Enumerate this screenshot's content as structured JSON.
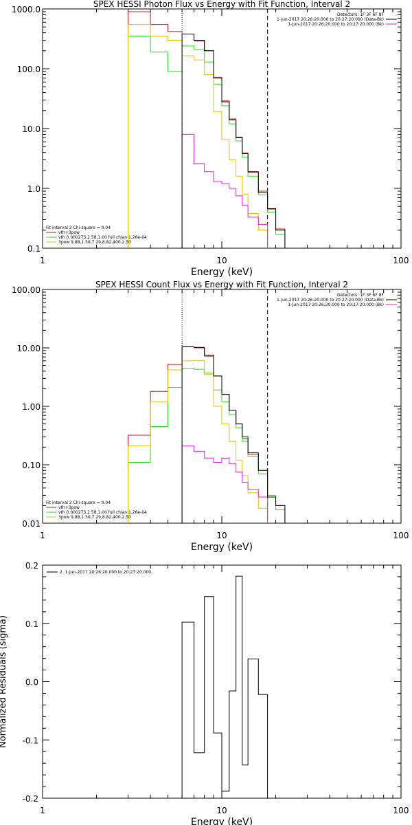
{
  "colors": {
    "background": "#ffffff",
    "axis": "#000000",
    "data": "#000000",
    "total": "#cc1a1a",
    "thermal": "#22dd22",
    "nonthermal": "#e5c000",
    "background_model": "#e01ee0"
  },
  "chart_data": [
    {
      "type": "line",
      "title": "SPEX HESSI Photon Flux vs Energy with Fit Function, Interval 2",
      "xlabel": "Energy (keV)",
      "ylabel": "",
      "xscale": "log",
      "yscale": "log",
      "xlim": [
        1,
        100
      ],
      "ylim": [
        0.1,
        1000
      ],
      "x_ticks": [
        "1",
        "10",
        "100"
      ],
      "y_ticks": [
        "0.1",
        "1.0",
        "10.0",
        "100.0",
        "1000.0"
      ],
      "grid": false,
      "vlines": [
        {
          "x": 6.0,
          "style": "dotted"
        },
        {
          "x": 18.0,
          "style": "dashed"
        }
      ],
      "legend_topright": [
        {
          "text": "Detectors: 1F 3F 6F 8F",
          "color": "#000000"
        },
        {
          "text": "1-Jun-2017 20:26:20.000 to 20:27:20.000 (Data-Bk)",
          "color": "#000000"
        },
        {
          "text": "1-Jun-2017 20:26:20.000 to 20:27:20.000 (Bk)",
          "color": "#e01ee0"
        }
      ],
      "legend_bottomleft": [
        {
          "text": "Fit Interval 2   Chi-square = 0.04",
          "color": "#000000"
        },
        {
          "text": "vth+3pow",
          "color": "#cc1a1a"
        },
        {
          "text": "vth 0.000273,2.58,1.00  full chian 1.26e-04",
          "color": "#22dd22"
        },
        {
          "text": "3pow 9.88,1.50,7.29,8.82,400,2.50",
          "color": "#e5c000"
        }
      ],
      "bin_edges": [
        3,
        4,
        5,
        6,
        7,
        8,
        9,
        10,
        11,
        12,
        13,
        14,
        16,
        18,
        20,
        22.5
      ],
      "series": [
        {
          "name": "Data-Bk",
          "color": "#000000",
          "range": [
            6,
            20
          ],
          "values": [
            null,
            null,
            null,
            380,
            300,
            200,
            70,
            28,
            14,
            7,
            3.8,
            1.9,
            0.85,
            0.46,
            0.2
          ]
        },
        {
          "name": "vth+3pow",
          "color": "#cc1a1a",
          "range": [
            3,
            22.5
          ],
          "values": [
            900,
            550,
            420,
            380,
            290,
            200,
            72,
            29,
            14.5,
            7.2,
            3.9,
            1.85,
            0.9,
            0.45,
            0.21
          ]
        },
        {
          "name": "vth",
          "color": "#22dd22",
          "range": [
            3,
            22.5
          ],
          "values": [
            350,
            190,
            90,
            240,
            210,
            130,
            55,
            24,
            12,
            6.2,
            3.3,
            1.6,
            0.78,
            0.4,
            0.17
          ]
        },
        {
          "name": "3pow",
          "color": "#e5c000",
          "range": [
            3,
            17
          ],
          "values": [
            550,
            350,
            300,
            165,
            140,
            80,
            19,
            6.5,
            3,
            1.6,
            0.8,
            0.38,
            0.2,
            null,
            null
          ]
        },
        {
          "name": "Bk",
          "color": "#e01ee0",
          "range": [
            6,
            18
          ],
          "values": [
            null,
            null,
            null,
            8,
            2.6,
            1.9,
            1.3,
            1.2,
            1.0,
            0.75,
            0.52,
            0.33,
            0.25,
            null,
            null
          ]
        }
      ]
    },
    {
      "type": "line",
      "title": "SPEX HESSI Count Flux vs Energy with Fit Function, Interval 2",
      "xlabel": "Energy (keV)",
      "ylabel": "",
      "xscale": "log",
      "yscale": "log",
      "xlim": [
        1,
        100
      ],
      "ylim": [
        0.01,
        100
      ],
      "x_ticks": [
        "1",
        "10",
        "100"
      ],
      "y_ticks": [
        "0.01",
        "0.10",
        "1.00",
        "10.00",
        "100.00"
      ],
      "grid": false,
      "vlines": [
        {
          "x": 6.0,
          "style": "dotted"
        },
        {
          "x": 18.0,
          "style": "dashed"
        }
      ],
      "legend_topright": [
        {
          "text": "Detectors: 1F 3F 6F 8F",
          "color": "#000000"
        },
        {
          "text": "1-Jun-2017 20:26:20.000 to 20:27:20.000 (Data-Bk)",
          "color": "#000000"
        },
        {
          "text": "1-Jun-2017 20:26:20.000 to 20:27:20.000 (Bk)",
          "color": "#e01ee0"
        }
      ],
      "legend_bottomleft": [
        {
          "text": "Fit Interval 2   Chi-square = 0.04",
          "color": "#000000"
        },
        {
          "text": "vth+3pow",
          "color": "#cc1a1a"
        },
        {
          "text": "vth 0.000273,2.58,1.00  full chian 1.26e-04",
          "color": "#22dd22"
        },
        {
          "text": "3pow 9.88,1.50,7.29,8.82,400,2.50",
          "color": "#e5c000"
        }
      ],
      "bin_edges": [
        3,
        4,
        5,
        6,
        7,
        8,
        9,
        10,
        11,
        12,
        13,
        14,
        16,
        18,
        20,
        22.5
      ],
      "series": [
        {
          "name": "Data-Bk",
          "color": "#000000",
          "range": [
            6,
            20
          ],
          "values": [
            null,
            null,
            null,
            10.5,
            10.2,
            7.5,
            3.3,
            1.6,
            0.85,
            0.5,
            0.3,
            0.16,
            0.08,
            0.028,
            0.02
          ]
        },
        {
          "name": "vth+3pow",
          "color": "#cc1a1a",
          "range": [
            3,
            22.5
          ],
          "values": [
            0.32,
            1.8,
            5.2,
            10.5,
            10.0,
            7.2,
            3.3,
            1.6,
            0.85,
            0.5,
            0.28,
            0.15,
            0.08,
            0.028,
            0.02
          ]
        },
        {
          "name": "vth",
          "color": "#22dd22",
          "range": [
            3,
            22.5
          ],
          "values": [
            0.11,
            0.45,
            2.1,
            4.5,
            4.3,
            3.7,
            1.9,
            1.2,
            0.72,
            0.43,
            0.25,
            0.14,
            0.07,
            0.03,
            0.017
          ]
        },
        {
          "name": "3pow",
          "color": "#e5c000",
          "range": [
            3,
            17
          ],
          "values": [
            0.21,
            1.2,
            4.2,
            6.0,
            6.1,
            3.5,
            1.0,
            0.5,
            0.25,
            0.12,
            0.065,
            0.033,
            0.018,
            null,
            null
          ]
        },
        {
          "name": "Bk",
          "color": "#e01ee0",
          "range": [
            6,
            18
          ],
          "values": [
            null,
            null,
            null,
            0.21,
            0.17,
            0.13,
            0.11,
            0.13,
            0.105,
            0.075,
            0.05,
            0.038,
            0.028,
            null,
            null
          ]
        }
      ]
    },
    {
      "type": "line",
      "title": "",
      "xlabel": "Energy (keV)",
      "ylabel": "Normalized Residuals (sigma)",
      "xscale": "log",
      "yscale": "linear",
      "xlim": [
        1,
        100
      ],
      "ylim": [
        -0.2,
        0.2
      ],
      "x_ticks": [
        "1",
        "10",
        "100"
      ],
      "y_ticks": [
        "-0.2",
        "-0.1",
        "0.0",
        "0.1",
        "0.2"
      ],
      "grid": false,
      "legend": [
        {
          "text": "2. 1-Jun-2017 20:26:20.000 to 20:27:20.000",
          "color": "#000000"
        }
      ],
      "bin_edges": [
        6,
        7,
        8,
        9,
        10,
        11,
        12,
        13,
        14,
        16,
        18
      ],
      "series": [
        {
          "name": "",
          "color": "#000000",
          "values": [
            0.102,
            -0.122,
            0.146,
            -0.088,
            -0.188,
            -0.016,
            0.181,
            -0.143,
            0.039,
            -0.022
          ]
        }
      ]
    }
  ]
}
